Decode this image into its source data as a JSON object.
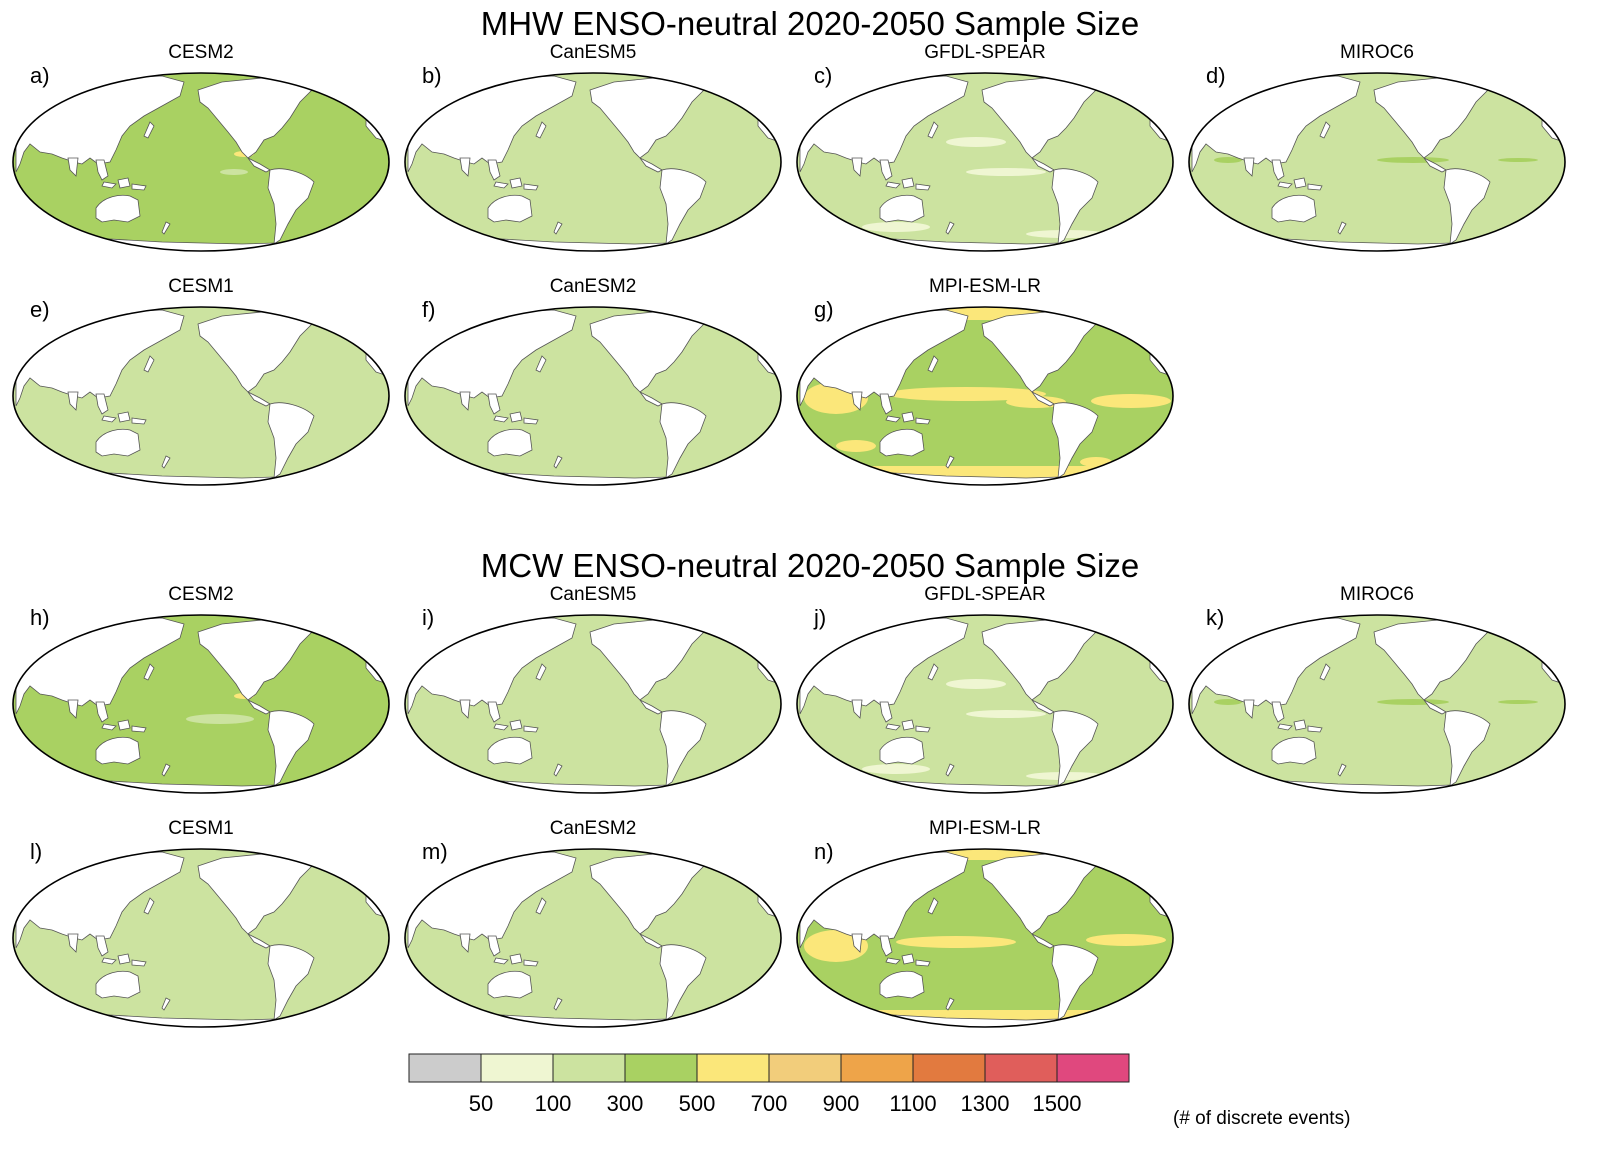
{
  "figure": {
    "title_top": "MHW ENSO-neutral 2020-2050 Sample Size",
    "title_bottom": "MCW ENSO-neutral 2020-2050 Sample Size"
  },
  "panels": [
    {
      "letter": "a)",
      "model": "CESM2",
      "base": "c500",
      "variant": "cesm2",
      "patches": "cesm2"
    },
    {
      "letter": "b)",
      "model": "CanESM5",
      "base": "c300",
      "variant": "plain",
      "patches": "none"
    },
    {
      "letter": "c)",
      "model": "GFDL-SPEAR",
      "base": "c300",
      "variant": "gfdl",
      "patches": "gfdl"
    },
    {
      "letter": "d)",
      "model": "MIROC6",
      "base": "c300",
      "variant": "miroc",
      "patches": "miroc"
    },
    {
      "letter": "e)",
      "model": "CESM1",
      "base": "c300",
      "variant": "plain",
      "patches": "none"
    },
    {
      "letter": "f)",
      "model": "CanESM2",
      "base": "c300",
      "variant": "plain",
      "patches": "none"
    },
    {
      "letter": "g)",
      "model": "MPI-ESM-LR",
      "base": "c500",
      "variant": "mpi",
      "patches": "mpi"
    },
    {
      "letter": "h)",
      "model": "CESM2",
      "base": "c500",
      "variant": "cesm2",
      "patches": "cesm2b"
    },
    {
      "letter": "i)",
      "model": "CanESM5",
      "base": "c300",
      "variant": "plain",
      "patches": "none"
    },
    {
      "letter": "j)",
      "model": "GFDL-SPEAR",
      "base": "c300",
      "variant": "gfdl",
      "patches": "gfdl"
    },
    {
      "letter": "k)",
      "model": "MIROC6",
      "base": "c300",
      "variant": "miroc",
      "patches": "miroc"
    },
    {
      "letter": "l)",
      "model": "CESM1",
      "base": "c300",
      "variant": "plain",
      "patches": "none"
    },
    {
      "letter": "m)",
      "model": "CanESM2",
      "base": "c300",
      "variant": "plain",
      "patches": "none"
    },
    {
      "letter": "n)",
      "model": "MPI-ESM-LR",
      "base": "c500",
      "variant": "mpi",
      "patches": "mpi2"
    }
  ],
  "colorbar": {
    "unit_label": "(# of discrete events)",
    "tick_labels": [
      "50",
      "100",
      "300",
      "500",
      "700",
      "900",
      "1100",
      "1300",
      "1500"
    ],
    "colors": [
      "#cccccc",
      "#eff6d2",
      "#cce3a0",
      "#a9d162",
      "#fbe77a",
      "#f2cd7b",
      "#eea449",
      "#e27a3f",
      "#e05e5b",
      "#e0487e"
    ]
  },
  "palette": {
    "c100": "#eff6d2",
    "c300": "#cce3a0",
    "c500": "#a9d162",
    "c700": "#fbe77a",
    "land": "#ffffff",
    "outline": "#000000"
  }
}
